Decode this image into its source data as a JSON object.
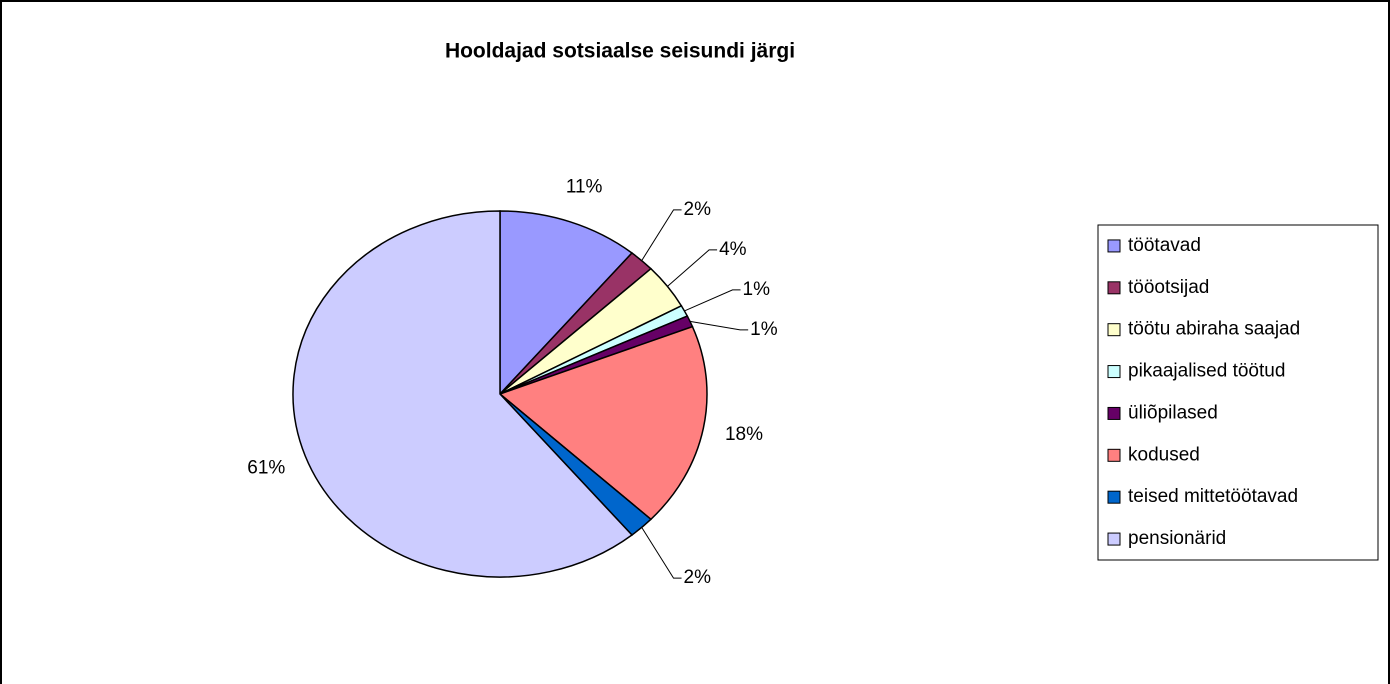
{
  "chart_data": {
    "type": "pie",
    "title": "Hooldajad sotsiaalse seisundi järgi",
    "categories": [
      "töötavad",
      "tööotsijad",
      "töötu abiraha saajad",
      "pikaajalised töötud",
      "üliõpilased",
      "kodused",
      "teised mittetöötavad",
      "pensionärid"
    ],
    "values": [
      11,
      2,
      4,
      1,
      1,
      18,
      2,
      61
    ],
    "value_labels": [
      "11%",
      "2%",
      "4%",
      "1%",
      "1%",
      "18%",
      "2%",
      "61%"
    ],
    "colors": [
      "#9999ff",
      "#993366",
      "#ffffcc",
      "#ccffff",
      "#660066",
      "#ff8080",
      "#0066cc",
      "#ccccff"
    ],
    "legend": "right"
  }
}
